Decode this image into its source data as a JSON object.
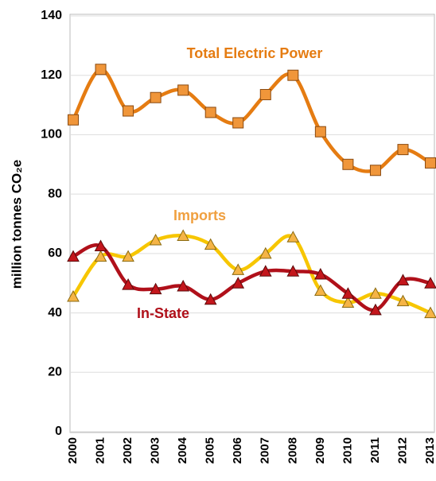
{
  "chart_data": {
    "type": "line",
    "y_label": "million tonnes CO₂e",
    "categories": [
      "2000",
      "2001",
      "2002",
      "2003",
      "2004",
      "2005",
      "2006",
      "2007",
      "2008",
      "2009",
      "2010",
      "2011",
      "2012",
      "2013"
    ],
    "ylim": [
      0,
      140
    ],
    "yticks": [
      0,
      20,
      40,
      60,
      80,
      100,
      120,
      140
    ],
    "grid": true,
    "series": [
      {
        "name": "Total Electric Power",
        "color": "#e57c12",
        "marker": "square",
        "values": [
          105,
          122,
          108,
          112.5,
          115,
          107.5,
          104,
          113.5,
          120,
          101,
          90,
          88,
          95,
          90.5
        ]
      },
      {
        "name": "Imports",
        "color": "#f7c600",
        "marker": "triangle",
        "values": [
          45.5,
          59,
          59,
          64.5,
          66,
          63,
          54.5,
          60,
          65.5,
          47.5,
          43.5,
          46.5,
          44,
          40
        ]
      },
      {
        "name": "In-State",
        "color": "#b0101a",
        "marker": "triangle",
        "values": [
          59,
          62.5,
          49.5,
          48,
          49,
          44.5,
          50,
          54,
          54,
          53,
          46.5,
          41,
          51,
          50
        ]
      }
    ]
  }
}
